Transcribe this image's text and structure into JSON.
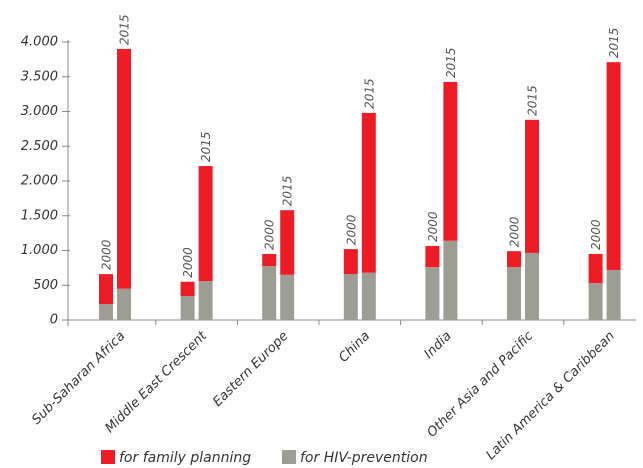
{
  "chart_data": {
    "type": "grouped-stacked-bar",
    "categories": [
      "Sub-Saharan Africa",
      "Middle East Crescent",
      "Eastern Europe",
      "China",
      "India",
      "Other Asia and Pacific",
      "Latin America & Caribbean"
    ],
    "groups": [
      "2000",
      "2015"
    ],
    "series": [
      {
        "name": "for HIV-prevention",
        "color": "#9d9d93",
        "values": [
          [
            230,
            450
          ],
          [
            345,
            560
          ],
          [
            775,
            650
          ],
          [
            660,
            680
          ],
          [
            760,
            1140
          ],
          [
            760,
            965
          ],
          [
            530,
            720
          ]
        ]
      },
      {
        "name": "for family planning",
        "color": "#ee1c25",
        "values": [
          [
            430,
            3450
          ],
          [
            205,
            1655
          ],
          [
            175,
            930
          ],
          [
            360,
            2300
          ],
          [
            305,
            2285
          ],
          [
            230,
            1915
          ],
          [
            420,
            2990
          ]
        ]
      }
    ],
    "legend_order": [
      1,
      0
    ],
    "ylim": [
      0,
      4000
    ],
    "yticks": [
      0,
      500,
      {
        "value": 1000,
        "label": "1.000"
      },
      {
        "value": 1500,
        "label": "1.500"
      },
      {
        "value": 2000,
        "label": "2.000"
      },
      {
        "value": 2500,
        "label": "2.500"
      },
      {
        "value": 3000,
        "label": "3.000"
      },
      {
        "value": 3500,
        "label": "3.500"
      },
      {
        "value": 4000,
        "label": "4.000"
      }
    ]
  }
}
